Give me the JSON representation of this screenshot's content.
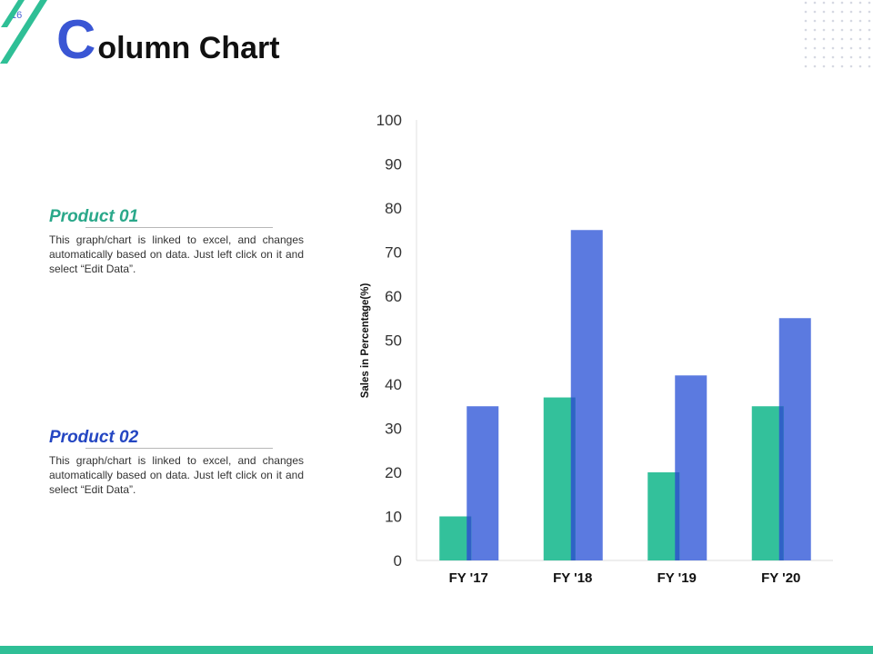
{
  "slide": {
    "number": "16"
  },
  "title": {
    "initial": "C",
    "rest": "olumn Chart"
  },
  "colors": {
    "accent_blue": "#3a56d4",
    "teal": "#33c19b",
    "series2_blue": "#5b7ae0",
    "teal_bar": "#2fbf96"
  },
  "products": [
    {
      "title": "Product 01",
      "color": "#2aa88a",
      "description": "This graph/chart is linked to excel, and changes automatically based on data. Just left click on it and select “Edit Data”."
    },
    {
      "title": "Product 02",
      "color": "#2446c2",
      "description": "This graph/chart is linked to excel, and changes automatically based on data. Just left click on it and select “Edit Data”."
    }
  ],
  "chart_data": {
    "type": "bar",
    "categories": [
      "FY '17",
      "FY '18",
      "FY '19",
      "FY '20"
    ],
    "series": [
      {
        "values": [
          10,
          37,
          20,
          35
        ],
        "color": "#33c19b"
      },
      {
        "values": [
          35,
          75,
          42,
          55
        ],
        "color": "#5b7ae0"
      }
    ],
    "ylabel": "Sales in Percentage(%)",
    "ylim": [
      0,
      100
    ],
    "yticks": [
      0,
      10,
      20,
      30,
      40,
      50,
      60,
      70,
      80,
      90,
      100
    ],
    "grid": false,
    "legend": "none"
  }
}
